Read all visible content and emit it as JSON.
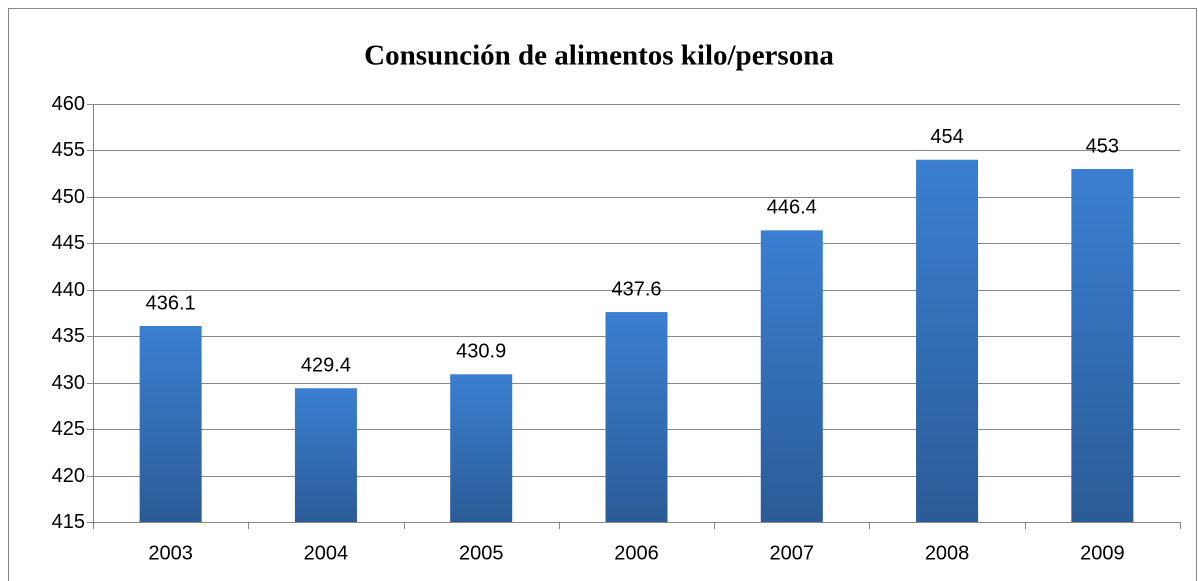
{
  "chart_data": {
    "type": "bar",
    "title": "Consunción de alimentos kilo/persona",
    "categories": [
      "2003",
      "2004",
      "2005",
      "2006",
      "2007",
      "2008",
      "2009"
    ],
    "values": [
      436.1,
      429.4,
      430.9,
      437.6,
      446.4,
      454,
      453
    ],
    "color": "#3b7fd1",
    "ylim": [
      415,
      460
    ],
    "yticks": [
      415,
      420,
      425,
      430,
      435,
      440,
      445,
      450,
      455,
      460
    ],
    "grid": true
  }
}
